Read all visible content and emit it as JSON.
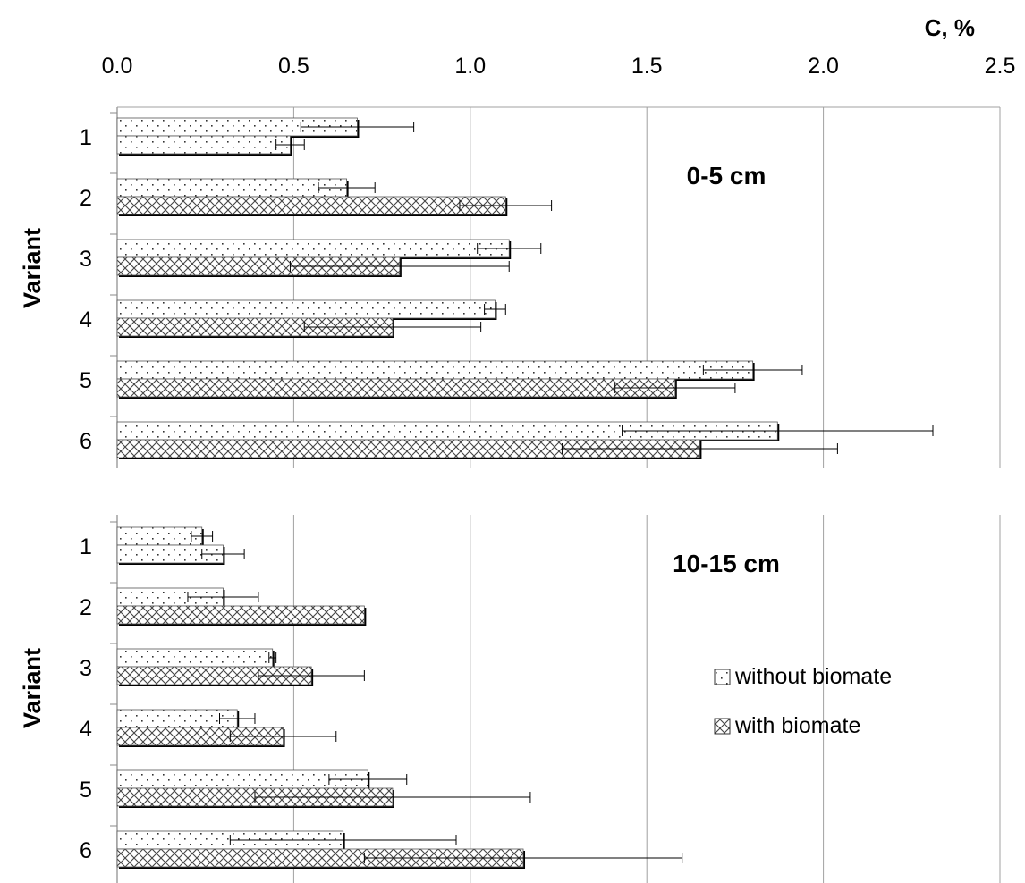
{
  "chart_data": {
    "type": "bar",
    "orientation": "horizontal",
    "x_axis": {
      "title": "C, %",
      "ticks": [
        "0.0",
        "0.5",
        "1.0",
        "1.5",
        "2.0",
        "2.5"
      ],
      "xlim": [
        0,
        2.5
      ],
      "position": "top",
      "grid": true
    },
    "legend": {
      "placement": "right",
      "entries": [
        "without biomate",
        "with biomate"
      ]
    },
    "series_styles": {
      "without biomate": "dotted",
      "with biomate": "crosshatch"
    },
    "panels": [
      {
        "title": "0-5 cm",
        "ylabel": "Variant",
        "categories": [
          "1",
          "2",
          "3",
          "4",
          "5",
          "6"
        ],
        "series": [
          {
            "name": "without biomate",
            "values": [
              0.68,
              0.65,
              1.11,
              1.07,
              1.8,
              1.87
            ],
            "errors": [
              0.16,
              0.08,
              0.09,
              0.03,
              0.14,
              0.44
            ]
          },
          {
            "name": "with biomate",
            "values": [
              0.49,
              1.1,
              0.8,
              0.78,
              1.58,
              1.65
            ],
            "errors": [
              0.04,
              0.13,
              0.31,
              0.25,
              0.17,
              0.39
            ],
            "bar_styles": [
              "dotted",
              "crosshatch",
              "crosshatch",
              "crosshatch",
              "crosshatch",
              "crosshatch"
            ]
          }
        ]
      },
      {
        "title": "10-15 cm",
        "ylabel": "Variant",
        "categories": [
          "1",
          "2",
          "3",
          "4",
          "5",
          "6"
        ],
        "series": [
          {
            "name": "without biomate",
            "values": [
              0.24,
              0.3,
              0.44,
              0.34,
              0.71,
              0.64
            ],
            "errors": [
              0.03,
              0.1,
              0.01,
              0.05,
              0.11,
              0.32
            ]
          },
          {
            "name": "with biomate",
            "values": [
              0.3,
              0.7,
              0.55,
              0.47,
              0.78,
              1.15
            ],
            "errors": [
              0.06,
              0.0,
              0.15,
              0.15,
              0.39,
              0.45
            ],
            "bar_styles": [
              "dotted",
              "crosshatch",
              "crosshatch",
              "crosshatch",
              "crosshatch",
              "crosshatch"
            ]
          }
        ]
      }
    ]
  }
}
